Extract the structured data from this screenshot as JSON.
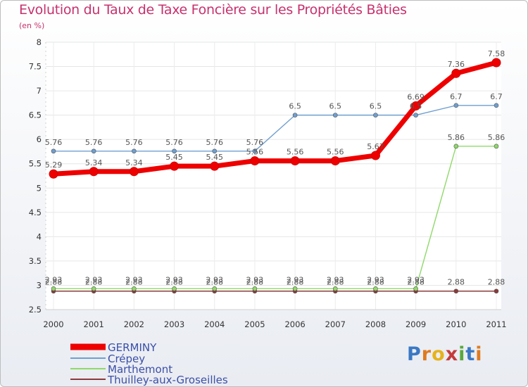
{
  "header": {
    "title": "Evolution du Taux de Taxe Foncière sur les Propriétés Bâties",
    "unit": "(en %)"
  },
  "logo": {
    "letters": [
      "P",
      "r",
      "o",
      "x",
      "i",
      "t",
      "i"
    ],
    "colors": [
      "#3b78c4",
      "#e07a1f",
      "#e6b21c",
      "#c43b3b",
      "#5aa83c",
      "#3b78c4",
      "#e07a1f"
    ]
  },
  "chart_data": {
    "type": "line",
    "title": "Evolution du Taux de Taxe Foncière sur les Propriétés Bâties",
    "ylabel": "(en %)",
    "xlabel": "",
    "categories": [
      "2000",
      "2001",
      "2002",
      "2003",
      "2004",
      "2005",
      "2006",
      "2007",
      "2008",
      "2009",
      "2010",
      "2011"
    ],
    "ylim": [
      2.5,
      8
    ],
    "yticks": [
      "2.5",
      "3",
      "3.5",
      "4",
      "4.5",
      "5",
      "5.5",
      "6",
      "6.5",
      "7",
      "7.5",
      "8"
    ],
    "grid": true,
    "series": [
      {
        "name": "GERMINY",
        "color": "#ee0000",
        "width": 7,
        "marker": 6,
        "values": [
          5.29,
          5.34,
          5.34,
          5.45,
          5.45,
          5.56,
          5.56,
          5.56,
          5.67,
          6.69,
          7.36,
          7.58
        ],
        "labels": [
          "5.29",
          "5.34",
          "5.34",
          "5.45",
          "5.45",
          "5.56",
          "5.56",
          "5.56",
          "5.67",
          "6.69",
          "7.36",
          "7.58"
        ]
      },
      {
        "name": "Crépey",
        "color": "#6f9fd0",
        "width": 1.4,
        "marker": 3,
        "values": [
          5.76,
          5.76,
          5.76,
          5.76,
          5.76,
          5.76,
          6.5,
          6.5,
          6.5,
          6.5,
          6.7,
          6.7
        ],
        "labels": [
          "5.76",
          "5.76",
          "5.76",
          "5.76",
          "5.76",
          "5.76",
          "6.5",
          "6.5",
          "6.5",
          "6.5",
          "6.7",
          "6.7"
        ]
      },
      {
        "name": "Marthemont",
        "color": "#8fd96a",
        "width": 1.4,
        "marker": 3,
        "values": [
          2.93,
          2.93,
          2.93,
          2.93,
          2.93,
          2.93,
          2.93,
          2.93,
          2.93,
          2.93,
          5.86,
          5.86
        ],
        "labels": [
          "2.93",
          "2.93",
          "2.93",
          "2.93",
          "2.93",
          "2.93",
          "2.93",
          "2.93",
          "2.93",
          "2.93",
          "5.86",
          "5.86"
        ]
      },
      {
        "name": "Thuilley-aux-Groseilles",
        "color": "#8b3a3a",
        "width": 1.4,
        "marker": 3,
        "values": [
          2.88,
          2.88,
          2.88,
          2.88,
          2.88,
          2.88,
          2.88,
          2.88,
          2.88,
          2.88,
          2.88,
          2.88
        ],
        "labels": [
          "2.88",
          "2.88",
          "2.88",
          "2.88",
          "2.88",
          "2.88",
          "2.88",
          "2.88",
          "2.88",
          "2.88",
          "2.88",
          "2.88"
        ]
      }
    ]
  }
}
